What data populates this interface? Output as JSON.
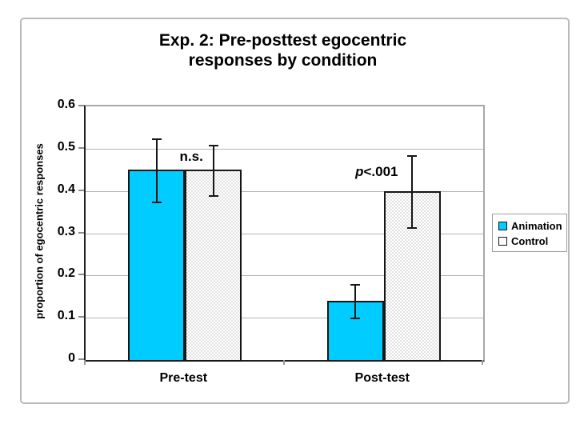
{
  "chart_data": {
    "type": "bar",
    "title_lines": [
      "Exp. 2:  Pre-posttest egocentric",
      "responses by condition"
    ],
    "ylabel": "proportion of egocentric responses",
    "xlabel": "",
    "categories": [
      "Pre-test",
      "Post-test"
    ],
    "series": [
      {
        "name": "Animation",
        "color": "#00CCFF",
        "pattern": "solid",
        "values": [
          0.45,
          0.14
        ],
        "err_low": [
          0.375,
          0.1
        ],
        "err_high": [
          0.525,
          0.18
        ]
      },
      {
        "name": "Control",
        "color": "#FFFFFF",
        "pattern": "dotted",
        "values": [
          0.45,
          0.4
        ],
        "err_low": [
          0.39,
          0.315
        ],
        "err_high": [
          0.51,
          0.485
        ]
      }
    ],
    "yticks": [
      0,
      0.1,
      0.2,
      0.3,
      0.4,
      0.5,
      0.6
    ],
    "ytick_labels": [
      "0",
      "0.1",
      "0.2",
      "0.3",
      "0.4",
      "0.5",
      "0.6"
    ],
    "ylim": [
      0,
      0.6
    ],
    "grid": true,
    "legend_position": "right",
    "annotations": [
      {
        "italic": "",
        "text": "n.s.",
        "x_frac": 0.266,
        "y_value": 0.48
      },
      {
        "italic": "p",
        "text": "<.001",
        "x_frac": 0.732,
        "y_value": 0.445
      }
    ]
  },
  "colors": {
    "frame_border": "#b9b9b9",
    "gridline": "#b4b4b4",
    "axis": "#161616",
    "animation_fill": "#00CCFF",
    "control_fill": "#FFFFFF"
  }
}
